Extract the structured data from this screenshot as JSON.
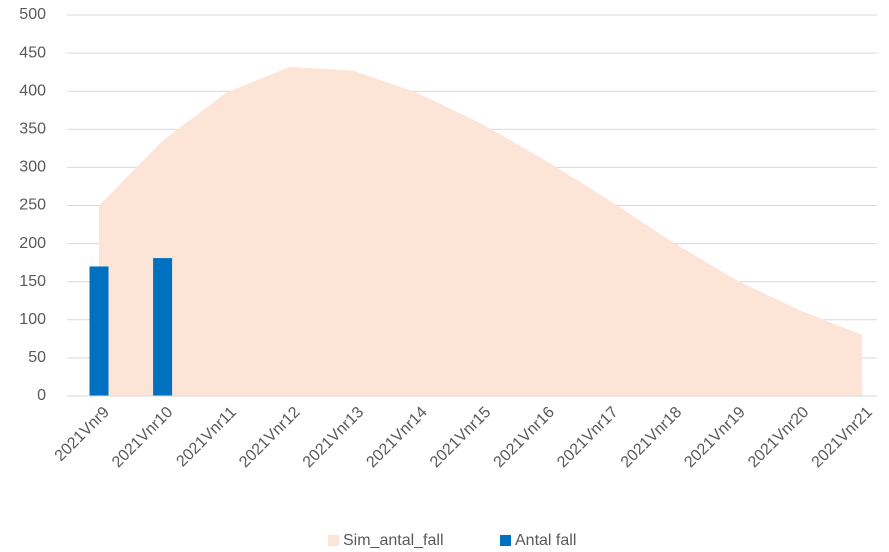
{
  "chart_data": {
    "type": "bar_area",
    "categories": [
      "2021Vnr9",
      "2021Vnr10",
      "2021Vnr11",
      "2021Vnr12",
      "2021Vnr13",
      "2021Vnr14",
      "2021Vnr15",
      "2021Vnr16",
      "2021Vnr17",
      "2021Vnr18",
      "2021Vnr19",
      "2021Vnr20",
      "2021Vnr21"
    ],
    "series": [
      {
        "name": "Sim_antal_fall",
        "type": "area",
        "color": "#fce4d6",
        "values": [
          250,
          335,
          398,
          432,
          427,
          398,
          358,
          310,
          258,
          203,
          153,
          113,
          80
        ]
      },
      {
        "name": "Antal fall",
        "type": "bar",
        "color": "#0070c0",
        "values": [
          170,
          181,
          null,
          null,
          null,
          null,
          null,
          null,
          null,
          null,
          null,
          null,
          null
        ]
      }
    ],
    "ylim": [
      0,
      500
    ],
    "yticks": [
      0,
      50,
      100,
      150,
      200,
      250,
      300,
      350,
      400,
      450,
      500
    ],
    "grid": true,
    "legend": "bottom"
  }
}
